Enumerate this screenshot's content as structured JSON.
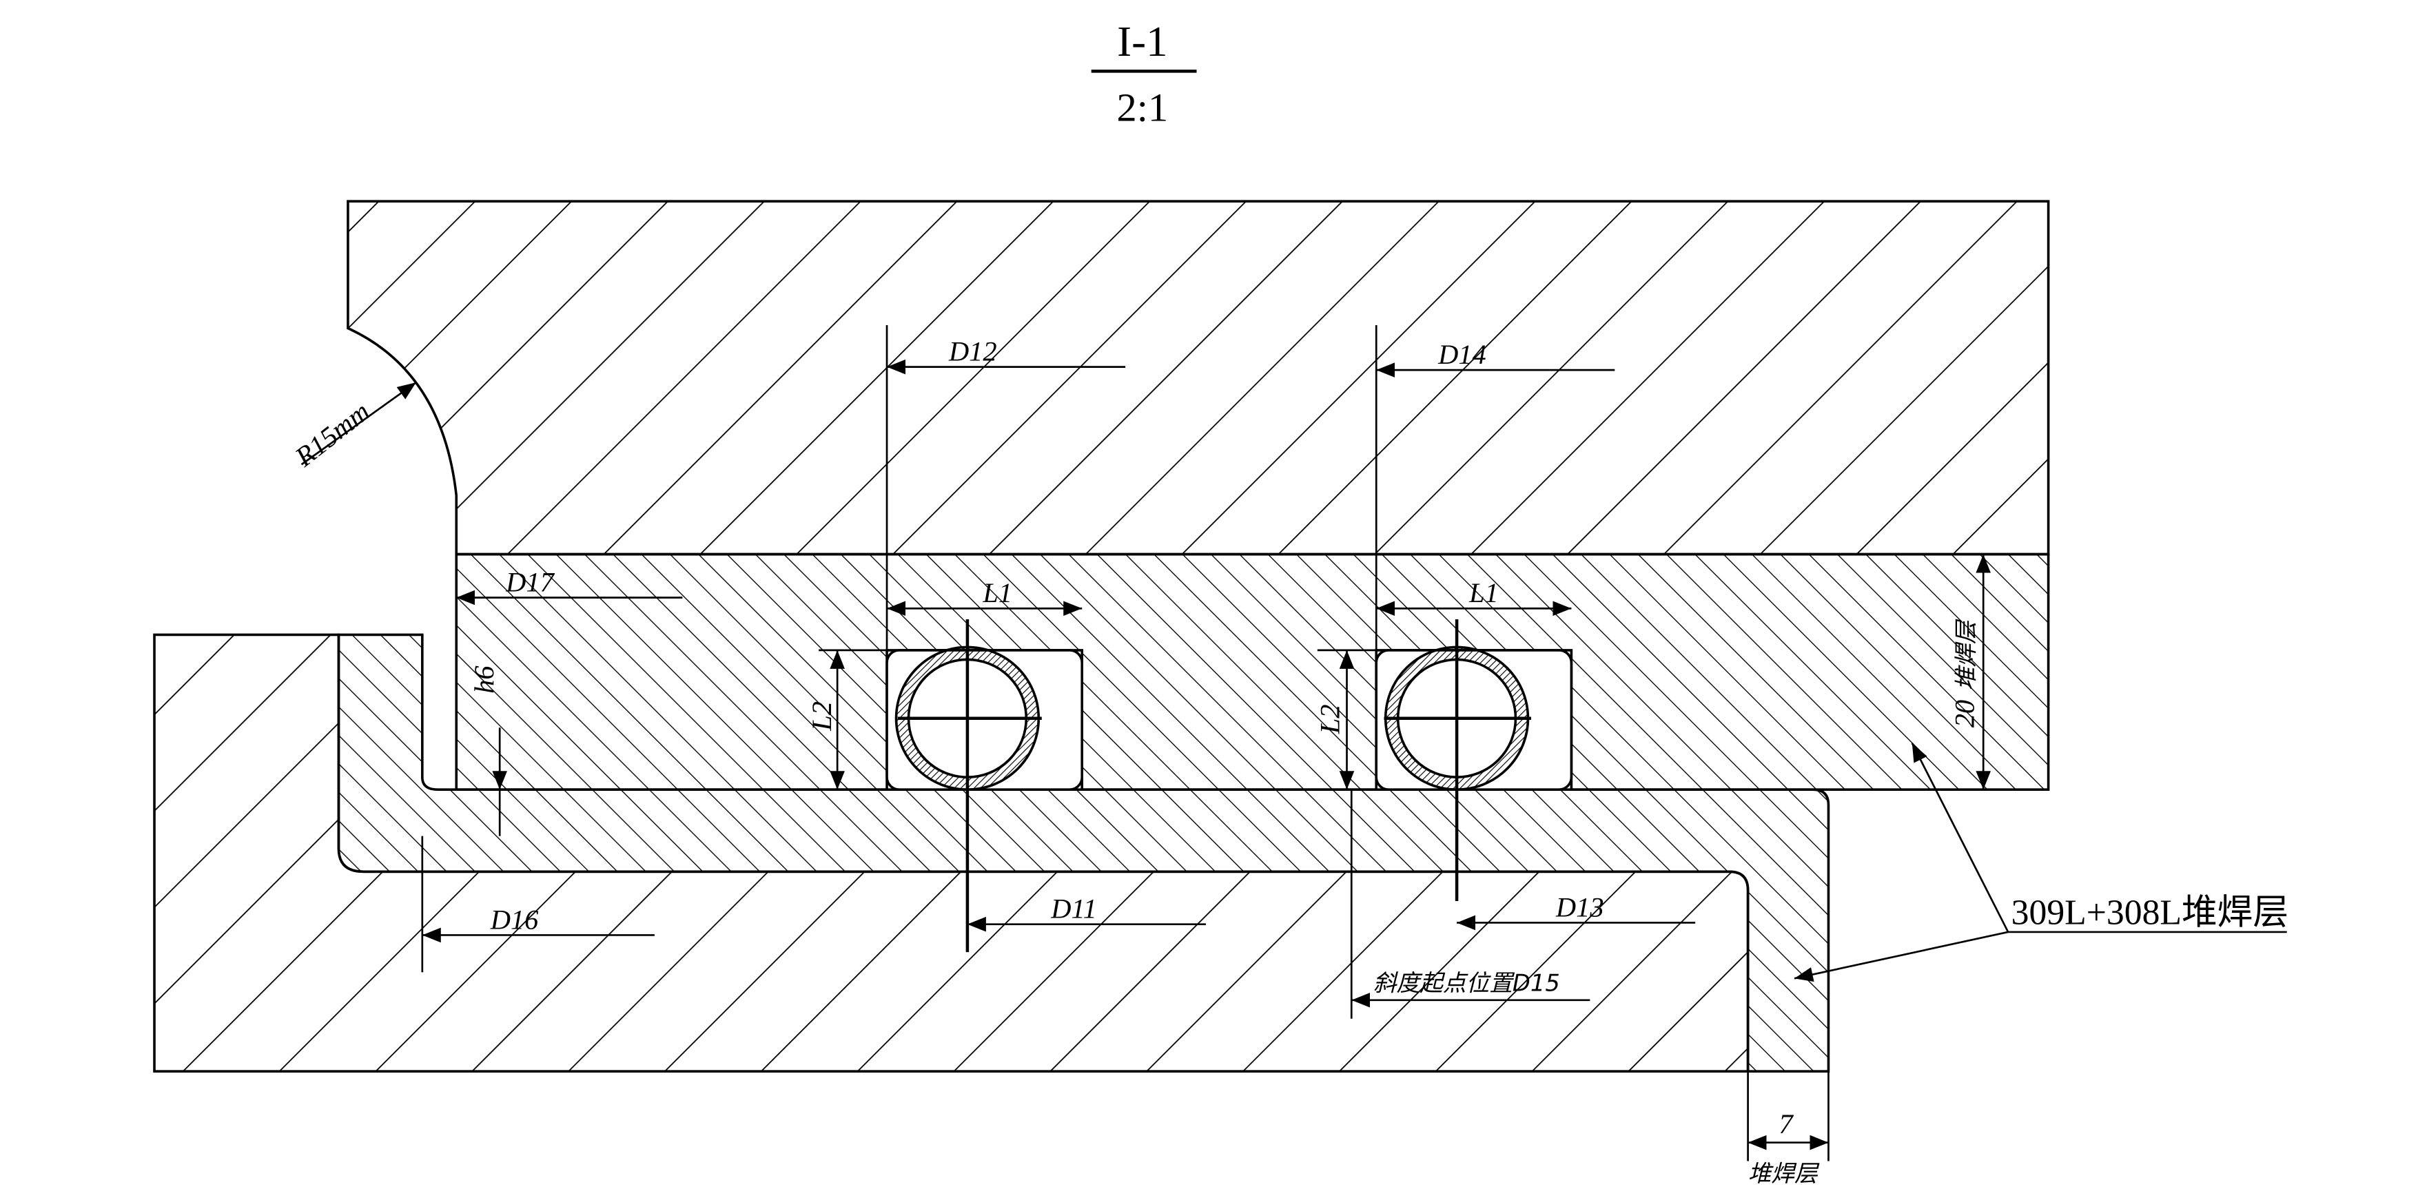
{
  "title": {
    "view": "I-1",
    "scale": "2:1"
  },
  "labels": {
    "radius": "R15mm",
    "d12": "D12",
    "d14": "D14",
    "d17": "D17",
    "l1_left": "L1",
    "l1_right": "L1",
    "l2_left": "L2",
    "l2_right": "L2",
    "h6": "h6",
    "d16": "D16",
    "d11": "D11",
    "d13": "D13",
    "d15": "斜度起点位置D15",
    "overlay_thickness": "20",
    "overlay_label_vertical": "堆焊层",
    "overlay_material": "309L+308L堆焊层",
    "bottom_thickness": "7",
    "bottom_overlay_label": "堆焊层"
  },
  "colors": {
    "line": "#000000",
    "background": "#ffffff"
  }
}
